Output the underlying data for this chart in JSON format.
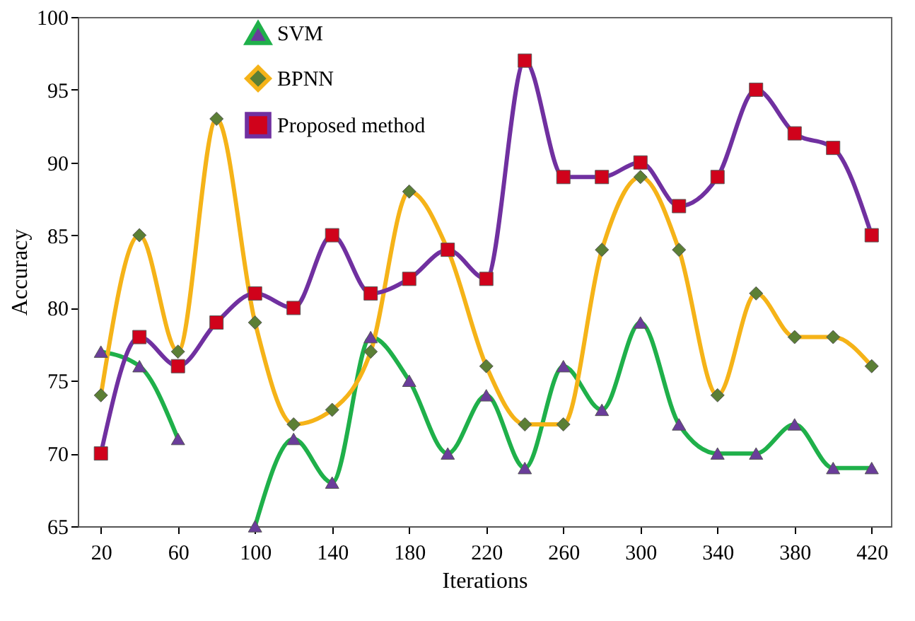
{
  "chart_data": {
    "type": "line",
    "xlabel": "Iterations",
    "ylabel": "Accuracy",
    "x": [
      20,
      40,
      60,
      80,
      100,
      120,
      140,
      160,
      180,
      200,
      220,
      240,
      260,
      280,
      300,
      320,
      340,
      360,
      380,
      400,
      420
    ],
    "xlim": [
      8,
      430
    ],
    "xticks": [
      20,
      60,
      100,
      140,
      180,
      220,
      260,
      300,
      340,
      380,
      420
    ],
    "ylim": [
      65,
      100
    ],
    "yticks": [
      65,
      70,
      75,
      80,
      85,
      90,
      95,
      100
    ],
    "grid": false,
    "legend": "top left",
    "line_style": "solid",
    "series": [
      {
        "name": "SVM",
        "color": "#1fb04a",
        "marker": "triangle",
        "values": [
          77,
          76,
          71,
          null,
          65,
          71,
          68,
          78,
          75,
          70,
          74,
          69,
          76,
          73,
          79,
          72,
          70,
          70,
          72,
          69,
          69
        ]
      },
      {
        "name": "BPNN",
        "color": "#f5b318",
        "marker": "diamond",
        "values": [
          74,
          85,
          77,
          93,
          79,
          72,
          73,
          77,
          88,
          84,
          76,
          72,
          72,
          84,
          89,
          84,
          74,
          81,
          78,
          78,
          76
        ]
      },
      {
        "name": "Proposed method",
        "color": "#7030a0",
        "marker": "square",
        "values": [
          70,
          78,
          76,
          79,
          81,
          80,
          85,
          81,
          82,
          84,
          82,
          97,
          89,
          89,
          90,
          87,
          89,
          95,
          92,
          91,
          85
        ]
      }
    ]
  }
}
